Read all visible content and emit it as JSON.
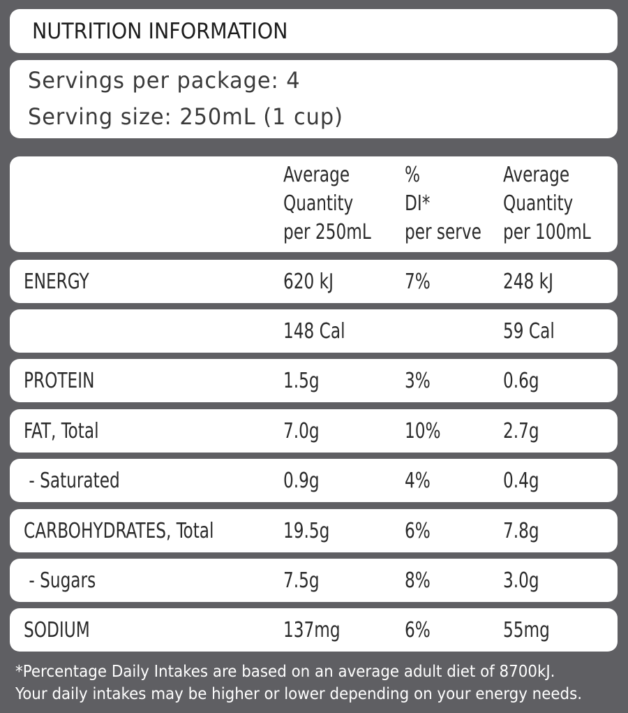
{
  "panel": {
    "title": "NUTRITION INFORMATION",
    "servings_per_package": "Servings per package: 4",
    "serving_size": "Serving size: 250mL (1 cup)"
  },
  "table": {
    "headers": {
      "per_serve": [
        "Average",
        "Quantity",
        "per 250mL"
      ],
      "di": [
        "%",
        "DI*",
        "per serve"
      ],
      "per_100": [
        "Average",
        "Quantity",
        "per 100mL"
      ]
    },
    "rows": [
      {
        "nutrient": "ENERGY",
        "per_serve": "620 kJ",
        "di": "7%",
        "per_100": "248 kJ"
      },
      {
        "nutrient": "",
        "per_serve": "148 Cal",
        "di": "",
        "per_100": "59 Cal"
      },
      {
        "nutrient": "PROTEIN",
        "per_serve": "1.5g",
        "di": "3%",
        "per_100": "0.6g"
      },
      {
        "nutrient": "FAT, Total",
        "per_serve": "7.0g",
        "di": "10%",
        "per_100": "2.7g"
      },
      {
        "nutrient": " - Saturated",
        "per_serve": "0.9g",
        "di": "4%",
        "per_100": "0.4g"
      },
      {
        "nutrient": "CARBOHYDRATES, Total",
        "per_serve": "19.5g",
        "di": "6%",
        "per_100": "7.8g"
      },
      {
        "nutrient": " - Sugars",
        "per_serve": "7.5g",
        "di": "8%",
        "per_100": "3.0g"
      },
      {
        "nutrient": "SODIUM",
        "per_serve": "137mg",
        "di": "6%",
        "per_100": "55mg"
      }
    ]
  },
  "footnote": {
    "line1": "*Percentage Daily Intakes are based on an average adult diet of 8700kJ.",
    "line2": "Your daily intakes may be higher or lower depending on your energy needs."
  }
}
